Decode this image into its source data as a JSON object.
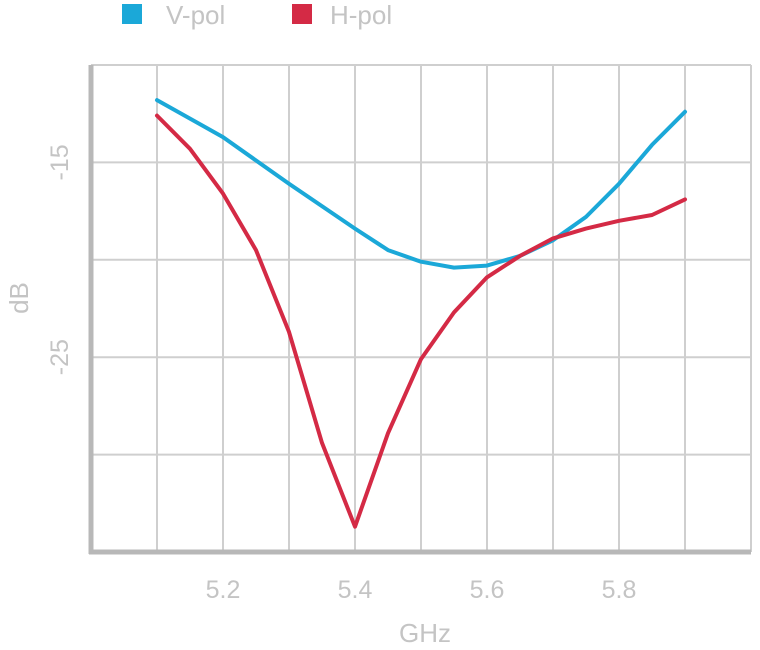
{
  "chart_data": {
    "type": "line",
    "title": "",
    "xlabel": "GHz",
    "ylabel": "dB",
    "xlim": [
      5.0,
      6.0
    ],
    "ylim": [
      -35,
      -10
    ],
    "x_ticks": [
      5.2,
      5.4,
      5.6,
      5.8
    ],
    "x_tick_labels": [
      "5.2",
      "5.4",
      "5.6",
      "5.8"
    ],
    "x_gridlines": [
      5.1,
      5.2,
      5.3,
      5.4,
      5.5,
      5.6,
      5.7,
      5.8,
      5.9
    ],
    "y_ticks": [
      -15,
      -25
    ],
    "y_tick_labels": [
      "-15",
      "-25"
    ],
    "y_gridlines": [
      -10,
      -15,
      -20,
      -25,
      -30
    ],
    "grid": true,
    "legend_position": "top-left",
    "series": [
      {
        "name": "V-pol",
        "color": "#1ba8d8",
        "x": [
          5.1,
          5.2,
          5.3,
          5.4,
          5.45,
          5.5,
          5.55,
          5.6,
          5.65,
          5.7,
          5.75,
          5.8,
          5.85,
          5.9
        ],
        "y": [
          -11.8,
          -13.7,
          -16.1,
          -18.4,
          -19.5,
          -20.1,
          -20.4,
          -20.3,
          -19.8,
          -19.0,
          -17.8,
          -16.1,
          -14.1,
          -12.4
        ]
      },
      {
        "name": "H-pol",
        "color": "#d42a45",
        "x": [
          5.1,
          5.15,
          5.2,
          5.25,
          5.3,
          5.35,
          5.4,
          5.45,
          5.5,
          5.55,
          5.6,
          5.65,
          5.7,
          5.75,
          5.8,
          5.85,
          5.9
        ],
        "y": [
          -12.6,
          -14.3,
          -16.6,
          -19.5,
          -23.7,
          -29.4,
          -33.7,
          -28.9,
          -25.1,
          -22.7,
          -20.9,
          -19.8,
          -18.9,
          -18.4,
          -18.0,
          -17.7,
          -16.9
        ]
      }
    ]
  }
}
